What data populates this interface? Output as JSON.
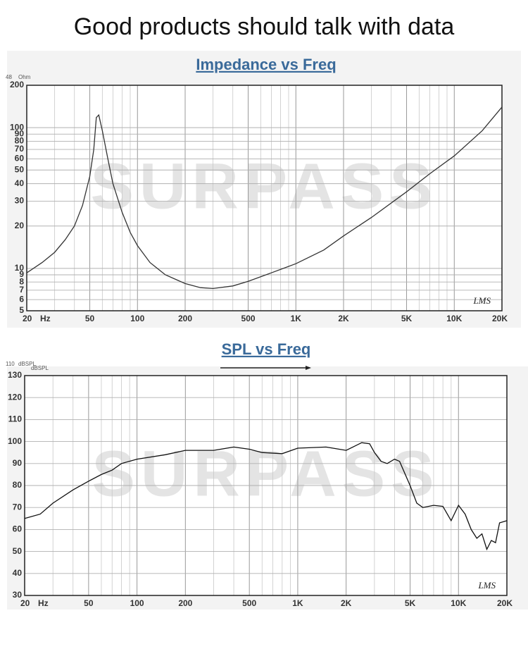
{
  "header": "Good products should talk with data",
  "chart_data": [
    {
      "type": "line",
      "title": "Impedance vs Freq",
      "corner_labels": [
        "48",
        "Ohm"
      ],
      "x_unit": "Hz",
      "watermark": "SURPASS",
      "annotation": "LMS",
      "xlog": true,
      "ylog": true,
      "grid": true,
      "color": "#333333",
      "xlim": [
        20,
        20000
      ],
      "ylim": [
        5,
        200
      ],
      "xticks": [
        20,
        50,
        100,
        200,
        500,
        {
          "value": 1000,
          "label": "1K"
        },
        {
          "value": 2000,
          "label": "2K"
        },
        {
          "value": 5000,
          "label": "5K"
        },
        {
          "value": 10000,
          "label": "10K"
        },
        {
          "value": 20000,
          "label": "20K"
        }
      ],
      "xminor": [
        30,
        40,
        60,
        70,
        80,
        90,
        300,
        400,
        600,
        700,
        800,
        900,
        3000,
        4000,
        6000,
        7000,
        8000,
        9000
      ],
      "yticks": [
        200,
        100,
        90,
        80,
        70,
        60,
        50,
        40,
        30,
        20,
        10,
        9,
        8,
        7,
        6,
        5
      ],
      "x": [
        20,
        25,
        30,
        35,
        40,
        45,
        50,
        53,
        55,
        57,
        60,
        65,
        70,
        80,
        90,
        100,
        120,
        150,
        200,
        250,
        300,
        400,
        500,
        700,
        1000,
        1500,
        2000,
        3000,
        5000,
        7000,
        10000,
        15000,
        20000
      ],
      "values": [
        9.3,
        11,
        13,
        16,
        20,
        28,
        45,
        70,
        118,
        123,
        95,
        60,
        40,
        25,
        18,
        14.5,
        11,
        9,
        7.8,
        7.3,
        7.2,
        7.5,
        8.1,
        9.3,
        10.8,
        13.5,
        17,
        23,
        35,
        47,
        63,
        95,
        140
      ]
    },
    {
      "type": "line",
      "title": "SPL vs Freq",
      "corner_labels": [
        "110",
        "dBSPL",
        "dBSPL"
      ],
      "x_unit": "Hz",
      "watermark": "SURPASS",
      "annotation": "LMS",
      "xlog": true,
      "ylog": false,
      "grid": true,
      "color": "#111111",
      "xlim": [
        20,
        20000
      ],
      "ylim": [
        30,
        130
      ],
      "xticks": [
        20,
        50,
        100,
        200,
        500,
        {
          "value": 1000,
          "label": "1K"
        },
        {
          "value": 2000,
          "label": "2K"
        },
        {
          "value": 5000,
          "label": "5K"
        },
        {
          "value": 10000,
          "label": "10K"
        },
        {
          "value": 20000,
          "label": "20K"
        }
      ],
      "xminor": [
        30,
        40,
        60,
        70,
        80,
        90,
        300,
        400,
        600,
        700,
        800,
        900,
        3000,
        4000,
        6000,
        7000,
        8000,
        9000
      ],
      "yticks": [
        130,
        120,
        110,
        100,
        90,
        80,
        70,
        60,
        50,
        40,
        30
      ],
      "x": [
        20,
        25,
        30,
        40,
        50,
        60,
        70,
        80,
        100,
        150,
        200,
        300,
        400,
        500,
        600,
        800,
        1000,
        1500,
        2000,
        2500,
        2800,
        3000,
        3300,
        3600,
        4000,
        4300,
        5000,
        5500,
        6000,
        7000,
        8000,
        9000,
        10000,
        11000,
        12000,
        13000,
        14000,
        15000,
        16000,
        17000,
        18000,
        20000
      ],
      "values": [
        65,
        67,
        72,
        78,
        82,
        85,
        87,
        90,
        92,
        94,
        96,
        96,
        97.5,
        96.5,
        95,
        94.5,
        97,
        97.5,
        96,
        99.5,
        99,
        95,
        91,
        90,
        92,
        91,
        80,
        72,
        70,
        71,
        70.5,
        64,
        71,
        67,
        60,
        56,
        58,
        51,
        55,
        54,
        63,
        64
      ]
    }
  ]
}
